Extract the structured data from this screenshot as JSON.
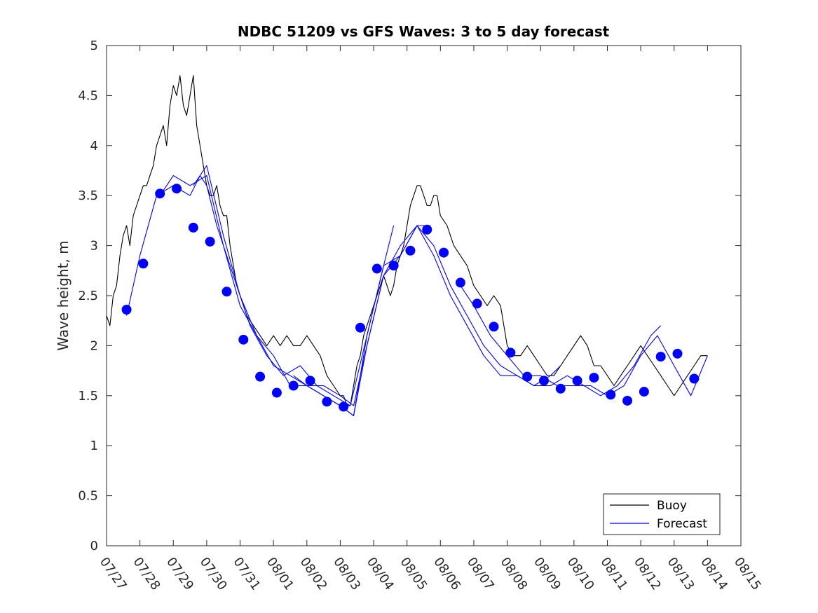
{
  "chart_data": {
    "type": "line",
    "title": "NDBC 51209 vs GFS Waves: 3 to 5 day forecast",
    "xlabel": "",
    "ylabel": "Wave height, m",
    "xlim": [
      "07/27",
      "08/15"
    ],
    "ylim": [
      0,
      5
    ],
    "x_tick_labels": [
      "07/27",
      "07/28",
      "07/29",
      "07/30",
      "07/31",
      "08/01",
      "08/02",
      "08/03",
      "08/04",
      "08/05",
      "08/06",
      "08/07",
      "08/08",
      "08/09",
      "08/10",
      "08/11",
      "08/12",
      "08/13",
      "08/14",
      "08/15"
    ],
    "y_tick_labels": [
      "0",
      "0.5",
      "1",
      "1.5",
      "2",
      "2.5",
      "3",
      "3.5",
      "4",
      "4.5",
      "5"
    ],
    "grid": false,
    "legend_position": "bottom-right",
    "colors": {
      "buoy": "#000000",
      "forecast": "#0000ff"
    },
    "series": [
      {
        "name": "Buoy",
        "style": "line",
        "x_days": [
          0.0,
          0.1,
          0.2,
          0.3,
          0.4,
          0.5,
          0.6,
          0.7,
          0.8,
          0.9,
          1.0,
          1.1,
          1.2,
          1.3,
          1.4,
          1.5,
          1.6,
          1.7,
          1.8,
          1.9,
          2.0,
          2.1,
          2.2,
          2.3,
          2.4,
          2.5,
          2.6,
          2.7,
          2.8,
          2.9,
          3.0,
          3.1,
          3.2,
          3.3,
          3.4,
          3.5,
          3.6,
          3.7,
          3.8,
          3.9,
          4.0,
          4.2,
          4.4,
          4.6,
          4.8,
          5.0,
          5.2,
          5.4,
          5.6,
          5.8,
          6.0,
          6.2,
          6.4,
          6.6,
          6.8,
          7.0,
          7.1,
          7.2,
          7.3,
          7.4,
          7.5,
          7.6,
          7.7,
          7.8,
          7.9,
          8.0,
          8.1,
          8.2,
          8.3,
          8.4,
          8.5,
          8.6,
          8.7,
          8.8,
          8.9,
          9.0,
          9.1,
          9.2,
          9.3,
          9.4,
          9.5,
          9.6,
          9.7,
          9.8,
          9.9,
          10.0,
          10.2,
          10.4,
          10.6,
          10.8,
          11.0,
          11.2,
          11.4,
          11.6,
          11.8,
          12.0,
          12.2,
          12.4,
          12.6,
          12.8,
          13.0,
          13.2,
          13.4,
          13.6,
          13.8,
          14.0,
          14.2,
          14.4,
          14.6,
          14.8,
          15.0,
          15.2,
          15.4,
          15.6,
          15.8,
          16.0,
          16.2,
          16.4,
          16.6,
          16.8,
          17.0,
          17.2,
          17.4,
          17.6,
          17.8,
          18.0
        ],
        "values": [
          2.3,
          2.2,
          2.5,
          2.6,
          2.9,
          3.1,
          3.2,
          3.0,
          3.3,
          3.4,
          3.5,
          3.6,
          3.6,
          3.7,
          3.8,
          4.0,
          4.1,
          4.2,
          4.0,
          4.4,
          4.6,
          4.5,
          4.7,
          4.4,
          4.3,
          4.5,
          4.7,
          4.2,
          4.0,
          3.8,
          3.6,
          3.5,
          3.5,
          3.6,
          3.4,
          3.3,
          3.3,
          3.0,
          2.8,
          2.6,
          2.5,
          2.3,
          2.2,
          2.1,
          2.0,
          2.1,
          2.0,
          2.1,
          2.0,
          2.0,
          2.1,
          2.0,
          1.9,
          1.7,
          1.6,
          1.5,
          1.5,
          1.4,
          1.4,
          1.6,
          1.8,
          1.9,
          2.1,
          2.2,
          2.3,
          2.4,
          2.5,
          2.6,
          2.7,
          2.6,
          2.5,
          2.6,
          2.8,
          2.9,
          3.0,
          3.2,
          3.4,
          3.5,
          3.6,
          3.6,
          3.5,
          3.4,
          3.4,
          3.5,
          3.5,
          3.3,
          3.2,
          3.0,
          2.9,
          2.8,
          2.6,
          2.5,
          2.4,
          2.5,
          2.4,
          2.0,
          1.9,
          1.9,
          2.0,
          1.9,
          1.8,
          1.7,
          1.7,
          1.8,
          1.9,
          2.0,
          2.1,
          2.0,
          1.8,
          1.8,
          1.7,
          1.6,
          1.7,
          1.8,
          1.9,
          2.0,
          1.9,
          1.8,
          1.7,
          1.6,
          1.5,
          1.6,
          1.7,
          1.8,
          1.9,
          1.9
        ]
      },
      {
        "name": "Forecast",
        "style": "line",
        "runs": [
          {
            "x_days": [
              0.6,
              1.0,
              1.5,
              2.0,
              2.5,
              2.8,
              3.0,
              3.3,
              3.8,
              4.3,
              4.8,
              5.3,
              5.8,
              6.3,
              6.8,
              7.3,
              7.8,
              8.3,
              8.6
            ],
            "values": [
              2.3,
              2.9,
              3.5,
              3.6,
              3.5,
              3.7,
              3.6,
              3.2,
              2.7,
              2.2,
              1.9,
              1.7,
              1.8,
              1.6,
              1.5,
              1.4,
              2.1,
              2.8,
              3.2
            ]
          },
          {
            "x_days": [
              1.6,
              2.0,
              2.5,
              3.0,
              3.5,
              4.0,
              4.5,
              5.0,
              5.5,
              6.0,
              6.5,
              7.0,
              7.4,
              7.8,
              8.3,
              8.8,
              9.3,
              9.7
            ],
            "values": [
              3.5,
              3.7,
              3.6,
              3.7,
              3.0,
              2.4,
              2.1,
              1.9,
              1.6,
              1.6,
              1.6,
              1.5,
              1.4,
              2.0,
              2.7,
              3.0,
              3.2,
              3.2
            ]
          },
          {
            "x_days": [
              2.6,
              3.0,
              3.5,
              4.0,
              4.5,
              5.0,
              5.5,
              6.0,
              6.5,
              7.0,
              7.4,
              7.8,
              8.3,
              8.8,
              9.3,
              9.8,
              10.3,
              10.8,
              11.3,
              11.8,
              12.3,
              12.8,
              13.3,
              13.6
            ],
            "values": [
              3.6,
              3.8,
              3.1,
              2.5,
              2.1,
              1.8,
              1.7,
              1.6,
              1.5,
              1.4,
              1.3,
              2.1,
              2.8,
              2.9,
              3.2,
              2.9,
              2.5,
              2.2,
              1.9,
              1.7,
              1.7,
              1.6,
              1.7,
              1.8
            ]
          },
          {
            "x_days": [
              5.6,
              6.0,
              6.5,
              7.0,
              7.4,
              7.8,
              8.3,
              8.8,
              9.3,
              9.8,
              10.3,
              10.8,
              11.3,
              11.8,
              12.3,
              12.8,
              13.3,
              13.8,
              14.3,
              14.8,
              15.3,
              15.8,
              16.3,
              16.6
            ],
            "values": [
              1.7,
              1.6,
              1.5,
              1.4,
              1.3,
              2.0,
              2.7,
              2.9,
              3.2,
              3.0,
              2.6,
              2.3,
              2.0,
              1.8,
              1.7,
              1.6,
              1.6,
              1.7,
              1.6,
              1.5,
              1.6,
              1.8,
              2.1,
              2.2
            ]
          },
          {
            "x_days": [
              10.6,
              11.0,
              11.5,
              12.0,
              12.5,
              13.0,
              13.5,
              14.0,
              14.5,
              15.0,
              15.5,
              16.0,
              16.5,
              17.0,
              17.5,
              18.0
            ],
            "values": [
              2.6,
              2.4,
              2.1,
              1.9,
              1.7,
              1.7,
              1.6,
              1.6,
              1.6,
              1.5,
              1.6,
              1.9,
              2.1,
              1.8,
              1.5,
              1.9
            ]
          }
        ],
        "marker_x_days": [
          0.6,
          1.1,
          1.6,
          2.1,
          2.6,
          3.1,
          3.6,
          4.1,
          4.6,
          5.1,
          5.6,
          6.1,
          6.6,
          7.1,
          7.6,
          8.1,
          8.6,
          9.1,
          9.6,
          10.1,
          10.6,
          11.1,
          11.6,
          12.1,
          12.6,
          13.1,
          13.6,
          14.1,
          14.6,
          15.1,
          15.6,
          16.1,
          16.6,
          17.1,
          17.6
        ],
        "marker_values": [
          2.36,
          2.82,
          3.52,
          3.57,
          3.18,
          3.04,
          2.54,
          2.06,
          1.69,
          1.53,
          1.6,
          1.65,
          1.44,
          1.39,
          2.18,
          2.77,
          2.8,
          2.95,
          3.16,
          2.93,
          2.63,
          2.42,
          2.19,
          1.93,
          1.69,
          1.65,
          1.57,
          1.65,
          1.68,
          1.51,
          1.45,
          1.54,
          1.89,
          1.92,
          1.67
        ]
      }
    ]
  }
}
